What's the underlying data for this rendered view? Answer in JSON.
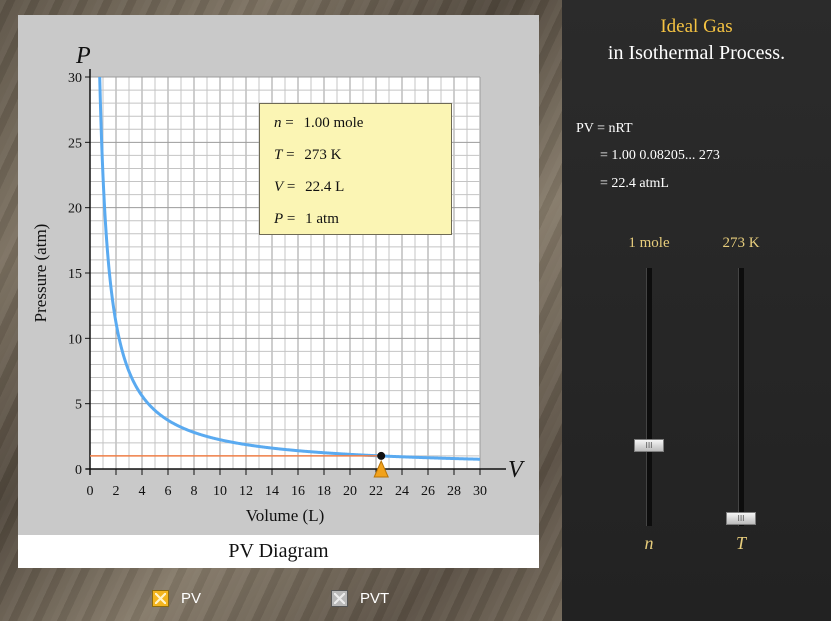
{
  "graph": {
    "y_axis_symbol": "P",
    "x_axis_symbol": "V",
    "y_label": "Pressure (atm)",
    "x_label": "Volume (L)",
    "caption": "PV Diagram",
    "x_ticks": [
      "0",
      "2",
      "4",
      "6",
      "8",
      "10",
      "12",
      "14",
      "16",
      "18",
      "20",
      "22",
      "24",
      "26",
      "28",
      "30"
    ],
    "y_ticks": [
      "0",
      "5",
      "10",
      "15",
      "20",
      "25",
      "30"
    ],
    "curve_color": "#5aaaf0",
    "line_color": "#f07f47",
    "marker_color": "#f2a21b",
    "isotherm_constant_PV": 22.4,
    "current_point": {
      "V": 22.4,
      "P": 1
    }
  },
  "info": {
    "n_sym": "n",
    "n_val": "1.00 mole",
    "T_sym": "T",
    "T_val": "273  K",
    "V_sym": "V",
    "V_val": "22.4  L",
    "P_sym": "P",
    "P_val": "1   atm"
  },
  "panel": {
    "title_line1": "Ideal Gas",
    "title_line2": "in Isothermal Process.",
    "eq1": "PV = nRT",
    "eq2": "= 1.00  0.08205...  273",
    "eq3": "= 22.4 atmL",
    "slider_n_value": "1 mole",
    "slider_T_value": "273 K",
    "slider_n_symbol": "n",
    "slider_T_symbol": "T",
    "thumb_grip": "III",
    "slider_n_level": 0.3,
    "slider_T_level": 0.0
  },
  "toggles": {
    "pv_label": "PV",
    "pvt_label": "PVT",
    "pv_checked": true,
    "pvt_checked": false
  }
}
